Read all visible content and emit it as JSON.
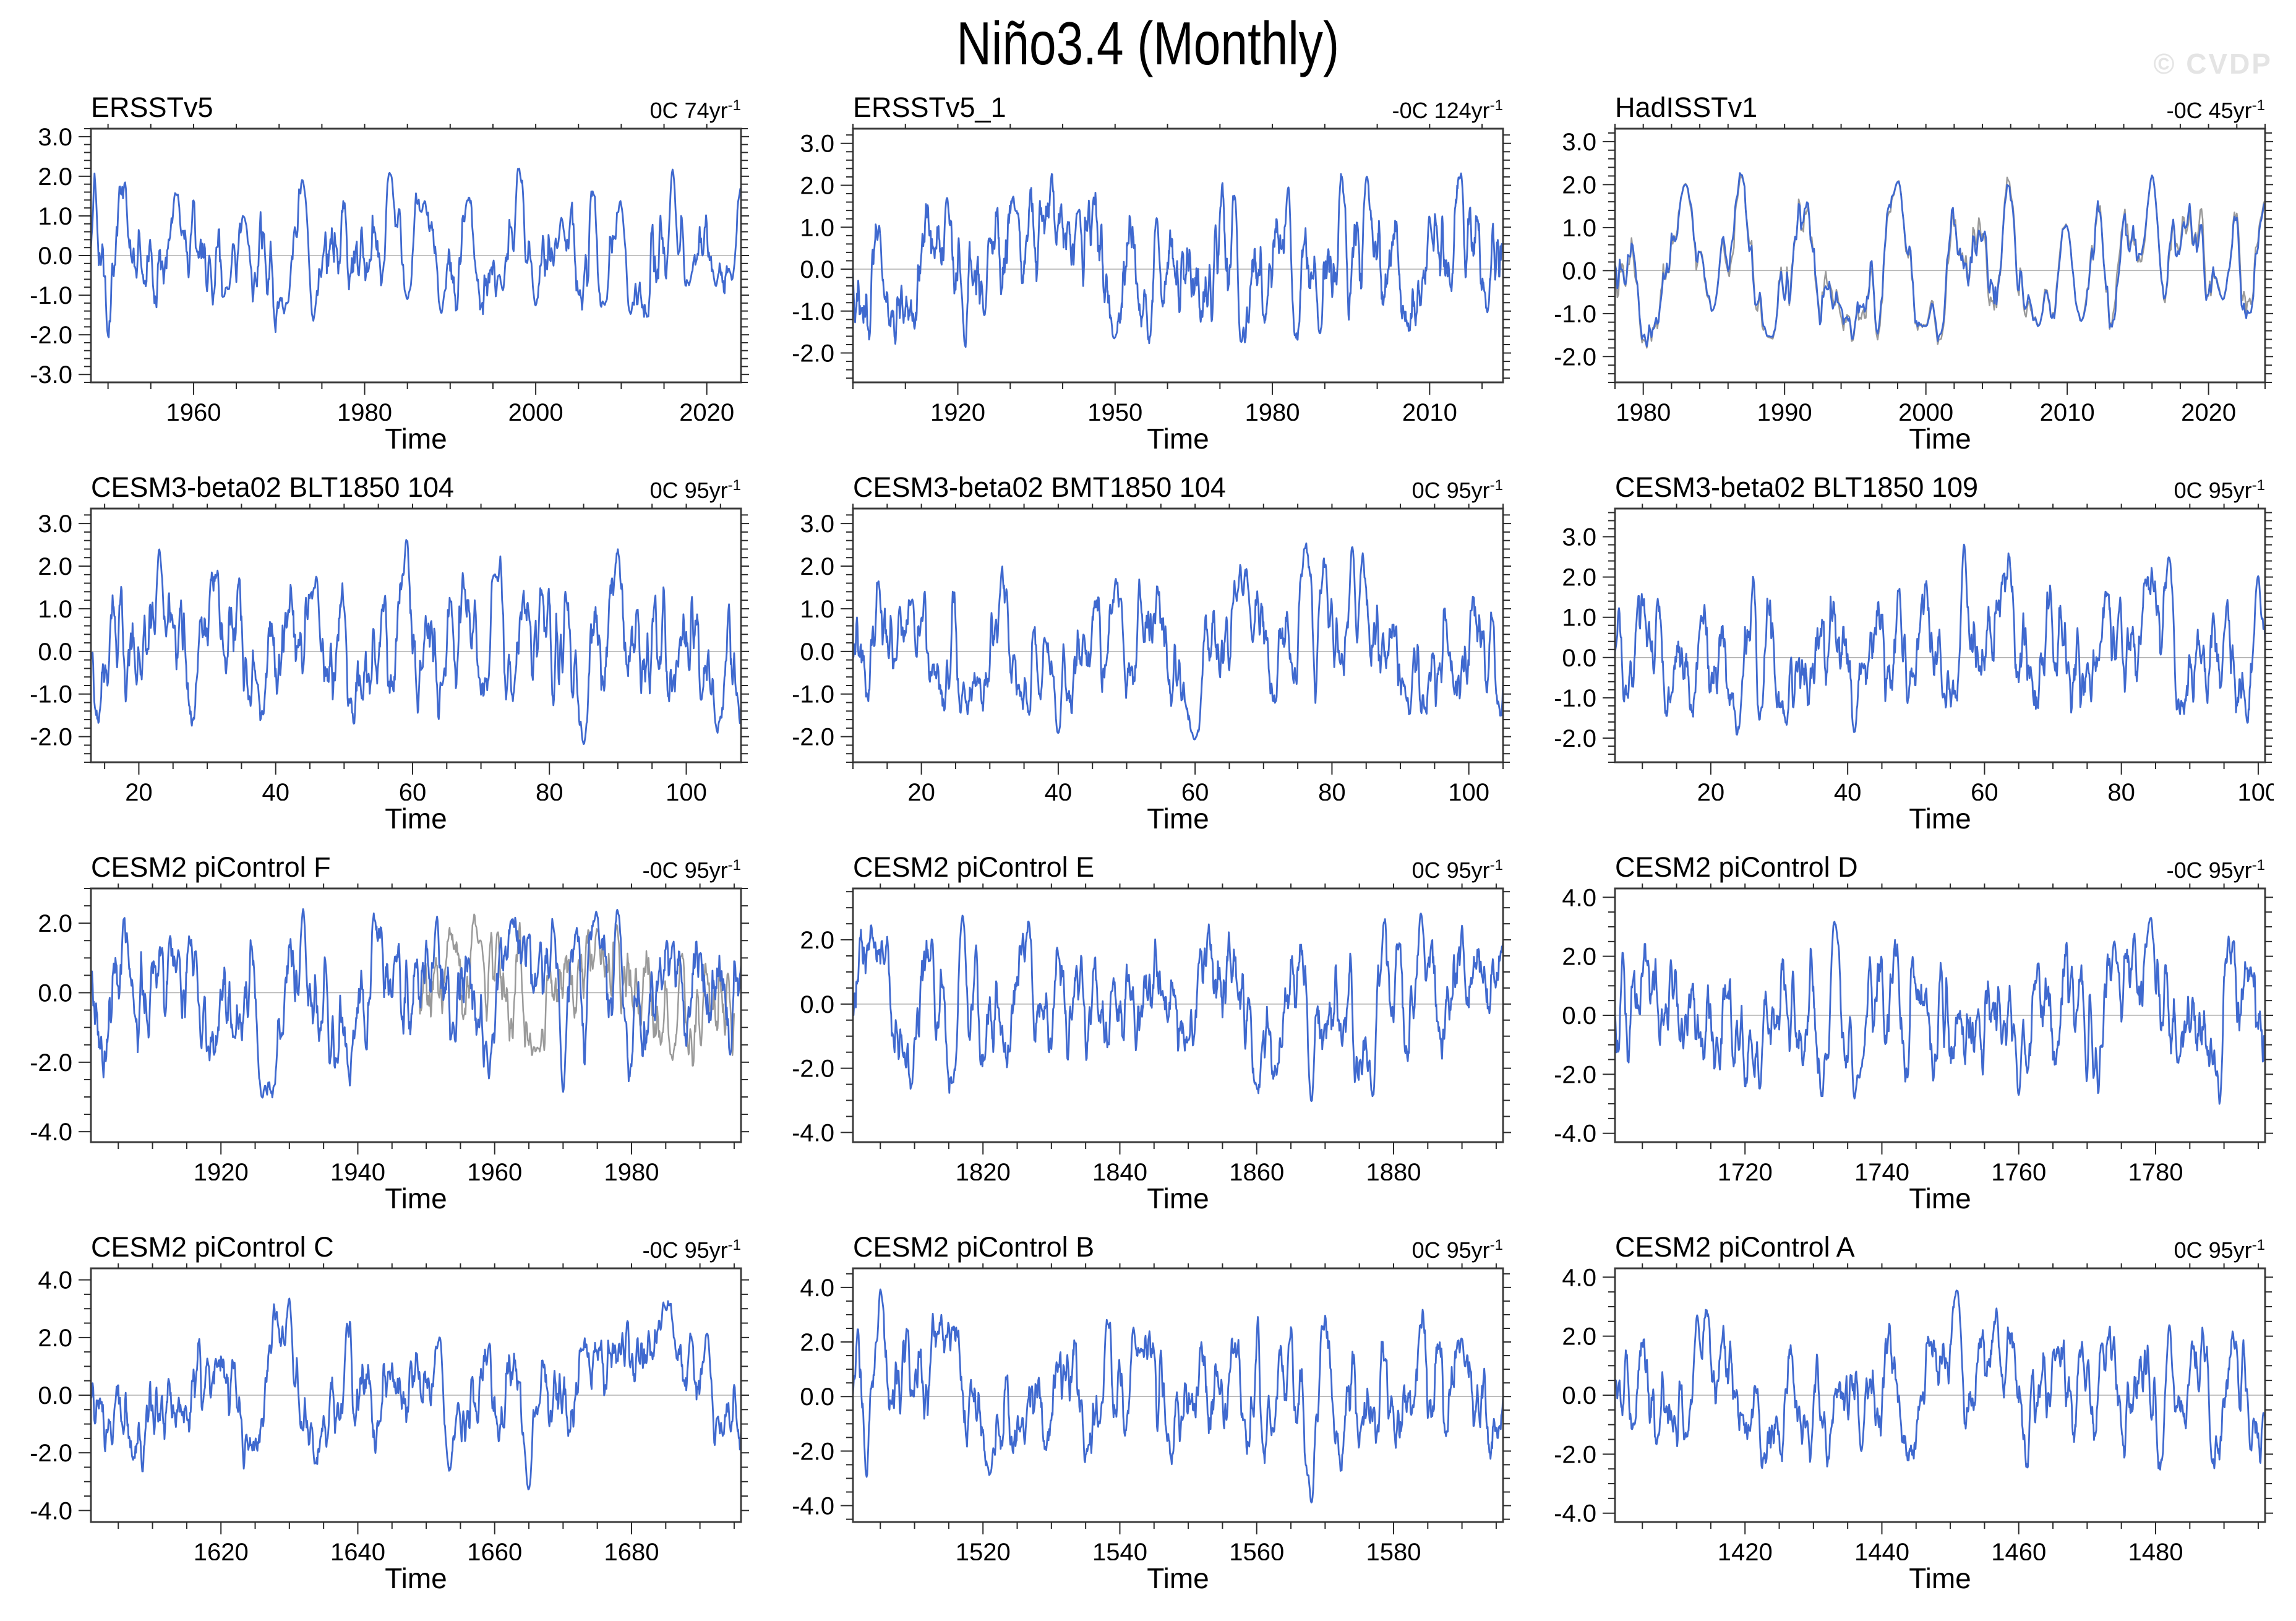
{
  "page": {
    "title": "Niño3.4 (Monthly)",
    "watermark": "© CVDP"
  },
  "style": {
    "series_blue": "#3f69cf",
    "series_gray": "#9a9a9a",
    "zero_line_color": "#b0b0b0",
    "axis_color": "#3c3c3c",
    "tick_color": "#2b2b2b"
  },
  "chart_data": [
    {
      "type": "line",
      "title": "ERSSTv5",
      "trend": {
        "text": "0C 74yr",
        "sup": "-1"
      },
      "xlabel": "Time",
      "x_range": [
        1948,
        2024
      ],
      "x_major_ticks": [
        1960,
        1980,
        2000,
        2020
      ],
      "x_minor_step": 5,
      "y_range": [
        -3.2,
        3.2
      ],
      "y_major_ticks": [
        -3,
        -2,
        -1,
        0,
        1,
        2,
        3
      ],
      "y_minor_step": 0.2,
      "zero_line": true,
      "series": [
        {
          "name": "nino34-index",
          "color": "#3f69cf",
          "seed": 101,
          "amplitude": 0.9,
          "anchor_points": [
            [
              1958,
              1.6
            ],
            [
              1964,
              -0.9
            ],
            [
              1966,
              1.2
            ],
            [
              1971,
              -1.3
            ],
            [
              1973,
              2.0
            ],
            [
              1974,
              -1.9
            ],
            [
              1983,
              2.2
            ],
            [
              1985,
              -1.1
            ],
            [
              1987,
              1.5
            ],
            [
              1989,
              -1.9
            ],
            [
              1992,
              1.6
            ],
            [
              1996,
              -0.9
            ],
            [
              1998,
              2.4
            ],
            [
              2000,
              -1.6
            ],
            [
              2003,
              1.3
            ],
            [
              2008,
              -1.6
            ],
            [
              2010,
              1.5
            ],
            [
              2011,
              -1.5
            ],
            [
              2016,
              2.7
            ],
            [
              2018,
              -0.9
            ],
            [
              2021,
              -1.1
            ],
            [
              2023,
              -0.9
            ],
            [
              2024,
              2.0
            ]
          ]
        }
      ]
    },
    {
      "type": "line",
      "title": "ERSSTv5_1",
      "trend": {
        "text": "-0C 124yr",
        "sup": "-1"
      },
      "xlabel": "Time",
      "x_range": [
        1900,
        2024
      ],
      "x_major_ticks": [
        1920,
        1950,
        1980,
        2010
      ],
      "x_minor_step": 10,
      "y_range": [
        -2.7,
        3.35
      ],
      "y_major_ticks": [
        -2,
        -1,
        0,
        1,
        2,
        3
      ],
      "y_minor_step": 0.2,
      "zero_line": true,
      "series": [
        {
          "name": "nino34-index",
          "color": "#3f69cf",
          "seed": 202,
          "amplitude": 0.92,
          "anchor_points": [
            [
              1905,
              1.3
            ],
            [
              1918,
              1.8
            ],
            [
              1925,
              -1.4
            ],
            [
              1931,
              1.4
            ],
            [
              1943,
              1.5
            ],
            [
              1950,
              -1.6
            ],
            [
              1958,
              1.5
            ],
            [
              1973,
              2.0
            ],
            [
              1974,
              -1.9
            ],
            [
              1983,
              2.3
            ],
            [
              1989,
              -1.8
            ],
            [
              1998,
              2.4
            ],
            [
              2010,
              1.5
            ],
            [
              2016,
              2.6
            ],
            [
              2021,
              -1.1
            ]
          ]
        }
      ]
    },
    {
      "type": "line",
      "title": "HadISSTv1",
      "trend": {
        "text": "-0C 45yr",
        "sup": "-1"
      },
      "xlabel": "Time",
      "x_range": [
        1978,
        2024
      ],
      "x_major_ticks": [
        1980,
        1990,
        2000,
        2010,
        2020
      ],
      "x_minor_step": 2,
      "y_range": [
        -2.6,
        3.3
      ],
      "y_major_ticks": [
        -2,
        -1,
        0,
        1,
        2,
        3
      ],
      "y_minor_step": 0.2,
      "zero_line": true,
      "series": [
        {
          "name": "companion-gray",
          "color": "#9a9a9a",
          "seed": 303,
          "amplitude": 0.95,
          "jitter": 0.17,
          "anchor_points": [
            [
              1983,
              2.2
            ],
            [
              1985,
              -1.1
            ],
            [
              1989,
              -1.9
            ],
            [
              1998,
              2.4
            ],
            [
              2000,
              -1.6
            ],
            [
              2008,
              -1.6
            ],
            [
              2010,
              1.5
            ],
            [
              2011,
              -1.4
            ],
            [
              2016,
              2.7
            ],
            [
              2021,
              -1.0
            ],
            [
              2024,
              1.8
            ]
          ]
        },
        {
          "name": "nino34-index",
          "color": "#3f69cf",
          "seed": 303,
          "amplitude": 0.95,
          "anchor_points": [
            [
              1983,
              2.2
            ],
            [
              1985,
              -1.1
            ],
            [
              1989,
              -1.9
            ],
            [
              1998,
              2.4
            ],
            [
              2000,
              -1.6
            ],
            [
              2008,
              -1.6
            ],
            [
              2010,
              1.5
            ],
            [
              2011,
              -1.4
            ],
            [
              2016,
              2.7
            ],
            [
              2021,
              -1.0
            ],
            [
              2024,
              1.8
            ]
          ]
        }
      ]
    },
    {
      "type": "line",
      "title": "CESM3-beta02 BLT1850 104",
      "trend": {
        "text": "0C 95yr",
        "sup": "-1"
      },
      "xlabel": "Time",
      "x_range": [
        13,
        108
      ],
      "x_major_ticks": [
        20,
        40,
        60,
        80,
        100
      ],
      "x_minor_step": 5,
      "y_range": [
        -2.6,
        3.35
      ],
      "y_major_ticks": [
        -2,
        -1,
        0,
        1,
        2,
        3
      ],
      "y_minor_step": 0.2,
      "zero_line": true,
      "series": [
        {
          "name": "nino34-index",
          "color": "#3f69cf",
          "seed": 404,
          "amplitude": 0.95,
          "anchor_points": [
            [
              23,
              2.8
            ],
            [
              46,
              2.1
            ],
            [
              72,
              2.1
            ],
            [
              85,
              -2.3
            ]
          ]
        }
      ]
    },
    {
      "type": "line",
      "title": "CESM3-beta02 BMT1850 104",
      "trend": {
        "text": "0C 95yr",
        "sup": "-1"
      },
      "xlabel": "Time",
      "x_range": [
        10,
        105
      ],
      "x_major_ticks": [
        20,
        40,
        60,
        80,
        100
      ],
      "x_minor_step": 5,
      "y_range": [
        -2.6,
        3.35
      ],
      "y_major_ticks": [
        -2,
        -1,
        0,
        1,
        2,
        3
      ],
      "y_minor_step": 0.2,
      "zero_line": true,
      "series": [
        {
          "name": "nino34-index",
          "color": "#3f69cf",
          "seed": 505,
          "amplitude": 0.95,
          "anchor_points": [
            [
              40,
              -2.1
            ],
            [
              60,
              -2.1
            ],
            [
              83,
              2.9
            ]
          ]
        }
      ]
    },
    {
      "type": "line",
      "title": "CESM3-beta02 BLT1850 109",
      "trend": {
        "text": "0C 95yr",
        "sup": "-1"
      },
      "xlabel": "Time",
      "x_range": [
        6,
        101
      ],
      "x_major_ticks": [
        20,
        40,
        60,
        80,
        100
      ],
      "x_minor_step": 5,
      "y_range": [
        -2.6,
        3.7
      ],
      "y_major_ticks": [
        -2,
        -1,
        0,
        1,
        2,
        3
      ],
      "y_minor_step": 0.2,
      "zero_line": true,
      "series": [
        {
          "name": "nino34-index",
          "color": "#3f69cf",
          "seed": 606,
          "amplitude": 0.95,
          "anchor_points": [
            [
              41,
              -2.2
            ],
            [
              57,
              3.4
            ],
            [
              87,
              2.5
            ],
            [
              100,
              2.5
            ]
          ]
        }
      ]
    },
    {
      "type": "line",
      "title": "CESM2 piControl F",
      "trend": {
        "text": "-0C 95yr",
        "sup": "-1"
      },
      "xlabel": "Time",
      "x_range": [
        1901,
        1996
      ],
      "x_major_ticks": [
        1920,
        1940,
        1960,
        1980
      ],
      "x_minor_step": 5,
      "y_range": [
        -4.3,
        3.0
      ],
      "y_major_ticks": [
        -4,
        -2,
        0,
        2
      ],
      "y_minor_step": 0.5,
      "zero_line": true,
      "series": [
        {
          "name": "companion-gray",
          "color": "#9a9a9a",
          "seed": 717,
          "amplitude": 1.1,
          "x_span": [
            1949,
            1995
          ],
          "anchor_points": [
            [
              1958,
              1.8
            ],
            [
              1966,
              -2.0
            ],
            [
              1975,
              2.0
            ],
            [
              1986,
              -2.2
            ]
          ]
        },
        {
          "name": "nino34-index",
          "color": "#3f69cf",
          "seed": 707,
          "amplitude": 1.25,
          "anchor_points": [
            [
              1926,
              -3.4
            ],
            [
              1932,
              2.9
            ],
            [
              1970,
              -3.5
            ],
            [
              1978,
              2.6
            ]
          ]
        }
      ]
    },
    {
      "type": "line",
      "title": "CESM2 piControl E",
      "trend": {
        "text": "0C 95yr",
        "sup": "-1"
      },
      "xlabel": "Time",
      "x_range": [
        1801,
        1896
      ],
      "x_major_ticks": [
        1820,
        1840,
        1860,
        1880
      ],
      "x_minor_step": 5,
      "y_range": [
        -4.3,
        3.6
      ],
      "y_major_ticks": [
        -4,
        -2,
        0,
        2
      ],
      "y_minor_step": 0.5,
      "zero_line": true,
      "series": [
        {
          "name": "nino34-index",
          "color": "#3f69cf",
          "seed": 808,
          "amplitude": 1.3,
          "anchor_points": [
            [
              1817,
              3.3
            ],
            [
              1868,
              -3.6
            ],
            [
              1884,
              2.9
            ]
          ]
        }
      ]
    },
    {
      "type": "line",
      "title": "CESM2 piControl D",
      "trend": {
        "text": "-0C 95yr",
        "sup": "-1"
      },
      "xlabel": "Time",
      "x_range": [
        1701,
        1796
      ],
      "x_major_ticks": [
        1720,
        1740,
        1760,
        1780
      ],
      "x_minor_step": 5,
      "y_range": [
        -4.3,
        4.3
      ],
      "y_major_ticks": [
        -4,
        -2,
        0,
        2,
        4
      ],
      "y_minor_step": 0.5,
      "zero_line": true,
      "series": [
        {
          "name": "nino34-index",
          "color": "#3f69cf",
          "seed": 909,
          "amplitude": 1.3,
          "anchor_points": [
            [
              1733,
              3.5
            ],
            [
              1736,
              -3.3
            ],
            [
              1760,
              -3.4
            ],
            [
              1774,
              2.8
            ]
          ]
        }
      ]
    },
    {
      "type": "line",
      "title": "CESM2 piControl C",
      "trend": {
        "text": "-0C 95yr",
        "sup": "-1"
      },
      "xlabel": "Time",
      "x_range": [
        1601,
        1696
      ],
      "x_major_ticks": [
        1620,
        1640,
        1660,
        1680
      ],
      "x_minor_step": 5,
      "y_range": [
        -4.4,
        4.4
      ],
      "y_major_ticks": [
        -4,
        -2,
        0,
        2,
        4
      ],
      "y_minor_step": 0.5,
      "zero_line": true,
      "series": [
        {
          "name": "nino34-index",
          "color": "#3f69cf",
          "seed": 1010,
          "amplitude": 1.3,
          "anchor_points": [
            [
              1630,
              3.9
            ],
            [
              1652,
              2.5
            ],
            [
              1665,
              -3.5
            ],
            [
              1691,
              2.6
            ]
          ]
        }
      ]
    },
    {
      "type": "line",
      "title": "CESM2 piControl B",
      "trend": {
        "text": "0C 95yr",
        "sup": "-1"
      },
      "xlabel": "Time",
      "x_range": [
        1501,
        1596
      ],
      "x_major_ticks": [
        1520,
        1540,
        1560,
        1580
      ],
      "x_minor_step": 5,
      "y_range": [
        -4.6,
        4.7
      ],
      "y_major_ticks": [
        -4,
        -2,
        0,
        2,
        4
      ],
      "y_minor_step": 0.5,
      "zero_line": true,
      "series": [
        {
          "name": "nino34-index",
          "color": "#3f69cf",
          "seed": 1111,
          "amplitude": 1.35,
          "anchor_points": [
            [
              1505,
              4.6
            ],
            [
              1521,
              -3.2
            ],
            [
              1542,
              3.2
            ],
            [
              1568,
              -4.2
            ],
            [
              1590,
              2.4
            ]
          ]
        }
      ]
    },
    {
      "type": "line",
      "title": "CESM2 piControl A",
      "trend": {
        "text": "0C 95yr",
        "sup": "-1"
      },
      "xlabel": "Time",
      "x_range": [
        1401,
        1496
      ],
      "x_major_ticks": [
        1420,
        1440,
        1460,
        1480
      ],
      "x_minor_step": 5,
      "y_range": [
        -4.3,
        4.3
      ],
      "y_major_ticks": [
        -4,
        -2,
        0,
        2,
        4
      ],
      "y_minor_step": 0.5,
      "zero_line": true,
      "series": [
        {
          "name": "nino34-index",
          "color": "#3f69cf",
          "seed": 1212,
          "amplitude": 1.3,
          "anchor_points": [
            [
              1413,
              3.2
            ],
            [
              1437,
              -2.5
            ],
            [
              1451,
              3.8
            ],
            [
              1482,
              3.0
            ]
          ]
        }
      ]
    }
  ]
}
